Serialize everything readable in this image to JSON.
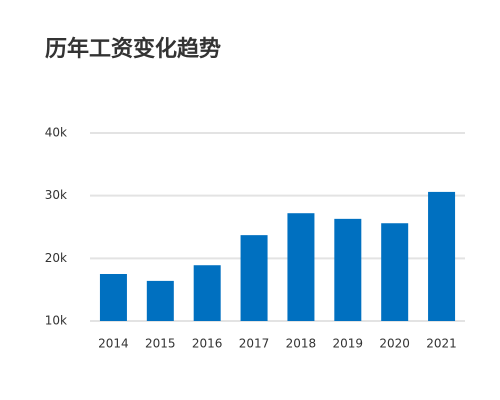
{
  "chart_data": {
    "type": "bar",
    "title": "历年工资变化趋势",
    "categories": [
      "2014",
      "2015",
      "2016",
      "2017",
      "2018",
      "2019",
      "2020",
      "2021"
    ],
    "values": [
      17500,
      16400,
      18900,
      23700,
      27200,
      26300,
      25600,
      30600
    ],
    "color": "#0070c0",
    "ylim": [
      10000,
      40000
    ],
    "yticks": [
      {
        "value": 10000,
        "label": "10k"
      },
      {
        "value": 20000,
        "label": "20k"
      },
      {
        "value": 30000,
        "label": "30k"
      },
      {
        "value": 40000,
        "label": "40k"
      }
    ],
    "grid": true
  }
}
